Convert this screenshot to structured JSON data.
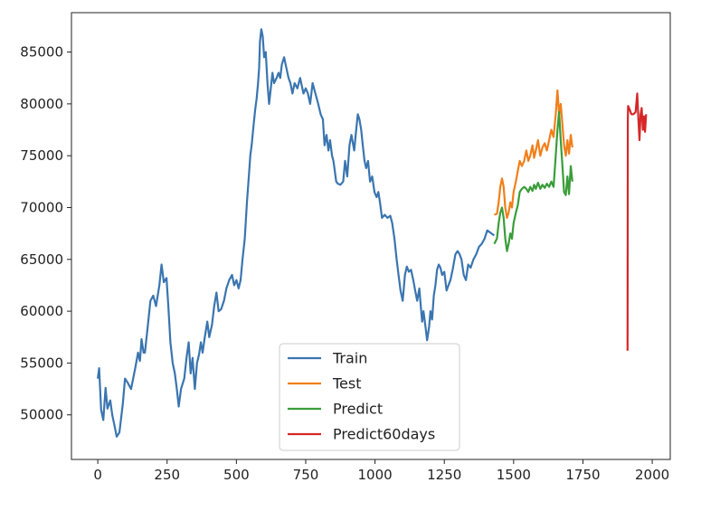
{
  "chart_data": {
    "type": "line",
    "title": "",
    "xlabel": "",
    "ylabel": "",
    "xlim": [
      -95,
      2065
    ],
    "ylim": [
      45700,
      88800
    ],
    "x_ticks": [
      0,
      250,
      500,
      750,
      1000,
      1250,
      1500,
      1750,
      2000
    ],
    "x_tick_labels": [
      "0",
      "250",
      "500",
      "750",
      "1000",
      "1250",
      "1500",
      "1750",
      "2000"
    ],
    "y_ticks": [
      50000,
      55000,
      60000,
      65000,
      70000,
      75000,
      80000,
      85000
    ],
    "y_tick_labels": [
      "50000",
      "55000",
      "60000",
      "65000",
      "70000",
      "75000",
      "80000",
      "85000"
    ],
    "grid": false,
    "legend": {
      "position": "lower-center"
    },
    "series": [
      {
        "name": "Train",
        "color": "#3a75b0",
        "points": [
          [
            0,
            53500
          ],
          [
            5,
            54500
          ],
          [
            12,
            50500
          ],
          [
            20,
            49500
          ],
          [
            28,
            52600
          ],
          [
            35,
            50600
          ],
          [
            45,
            51400
          ],
          [
            52,
            50000
          ],
          [
            60,
            49000
          ],
          [
            68,
            47900
          ],
          [
            78,
            48300
          ],
          [
            90,
            51000
          ],
          [
            98,
            53500
          ],
          [
            108,
            53100
          ],
          [
            120,
            52500
          ],
          [
            135,
            54500
          ],
          [
            145,
            56000
          ],
          [
            152,
            55200
          ],
          [
            158,
            57300
          ],
          [
            165,
            56000
          ],
          [
            170,
            56000
          ],
          [
            180,
            58500
          ],
          [
            190,
            61000
          ],
          [
            200,
            61500
          ],
          [
            210,
            60500
          ],
          [
            222,
            62500
          ],
          [
            230,
            64500
          ],
          [
            238,
            62800
          ],
          [
            248,
            63200
          ],
          [
            255,
            60200
          ],
          [
            262,
            57000
          ],
          [
            270,
            55000
          ],
          [
            278,
            54000
          ],
          [
            285,
            52500
          ],
          [
            292,
            50800
          ],
          [
            300,
            52500
          ],
          [
            312,
            53500
          ],
          [
            320,
            55500
          ],
          [
            328,
            57000
          ],
          [
            335,
            54000
          ],
          [
            342,
            55500
          ],
          [
            350,
            52500
          ],
          [
            358,
            55000
          ],
          [
            365,
            55800
          ],
          [
            372,
            57000
          ],
          [
            378,
            56000
          ],
          [
            386,
            57500
          ],
          [
            395,
            59000
          ],
          [
            402,
            57500
          ],
          [
            412,
            58700
          ],
          [
            420,
            60500
          ],
          [
            428,
            61800
          ],
          [
            436,
            60000
          ],
          [
            445,
            60200
          ],
          [
            455,
            61000
          ],
          [
            464,
            62200
          ],
          [
            474,
            63000
          ],
          [
            484,
            63500
          ],
          [
            492,
            62500
          ],
          [
            500,
            63000
          ],
          [
            508,
            62200
          ],
          [
            515,
            63000
          ],
          [
            522,
            65000
          ],
          [
            530,
            67000
          ],
          [
            538,
            70500
          ],
          [
            545,
            73000
          ],
          [
            550,
            75000
          ],
          [
            555,
            76000
          ],
          [
            562,
            78000
          ],
          [
            568,
            79500
          ],
          [
            573,
            80500
          ],
          [
            578,
            82000
          ],
          [
            582,
            83500
          ],
          [
            585,
            86000
          ],
          [
            590,
            87200
          ],
          [
            595,
            86500
          ],
          [
            600,
            84500
          ],
          [
            606,
            85000
          ],
          [
            612,
            82000
          ],
          [
            618,
            80000
          ],
          [
            624,
            81500
          ],
          [
            630,
            83000
          ],
          [
            636,
            82000
          ],
          [
            645,
            82500
          ],
          [
            652,
            83000
          ],
          [
            658,
            82500
          ],
          [
            664,
            83800
          ],
          [
            672,
            84500
          ],
          [
            680,
            83500
          ],
          [
            688,
            82500
          ],
          [
            695,
            82000
          ],
          [
            702,
            81000
          ],
          [
            710,
            82000
          ],
          [
            720,
            81500
          ],
          [
            730,
            82500
          ],
          [
            742,
            81000
          ],
          [
            750,
            81500
          ],
          [
            758,
            81000
          ],
          [
            766,
            80000
          ],
          [
            775,
            82000
          ],
          [
            785,
            81000
          ],
          [
            795,
            80000
          ],
          [
            804,
            79000
          ],
          [
            812,
            78500
          ],
          [
            818,
            76000
          ],
          [
            825,
            77000
          ],
          [
            832,
            75500
          ],
          [
            838,
            76500
          ],
          [
            845,
            75000
          ],
          [
            850,
            74500
          ],
          [
            855,
            73500
          ],
          [
            860,
            72500
          ],
          [
            866,
            72300
          ],
          [
            875,
            72200
          ],
          [
            885,
            72500
          ],
          [
            892,
            74500
          ],
          [
            900,
            73000
          ],
          [
            908,
            76000
          ],
          [
            915,
            77000
          ],
          [
            925,
            75500
          ],
          [
            932,
            77500
          ],
          [
            938,
            79000
          ],
          [
            944,
            78500
          ],
          [
            950,
            77500
          ],
          [
            956,
            76000
          ],
          [
            962,
            74500
          ],
          [
            968,
            73800
          ],
          [
            975,
            74500
          ],
          [
            982,
            72500
          ],
          [
            990,
            73000
          ],
          [
            998,
            71500
          ],
          [
            1006,
            71000
          ],
          [
            1012,
            71500
          ],
          [
            1018,
            70500
          ],
          [
            1025,
            69000
          ],
          [
            1035,
            69300
          ],
          [
            1045,
            69000
          ],
          [
            1055,
            69200
          ],
          [
            1062,
            68500
          ],
          [
            1070,
            67000
          ],
          [
            1078,
            65000
          ],
          [
            1085,
            63500
          ],
          [
            1092,
            62000
          ],
          [
            1100,
            61000
          ],
          [
            1108,
            63500
          ],
          [
            1115,
            64300
          ],
          [
            1122,
            63800
          ],
          [
            1130,
            64000
          ],
          [
            1138,
            63000
          ],
          [
            1145,
            62000
          ],
          [
            1152,
            61000
          ],
          [
            1160,
            62200
          ],
          [
            1165,
            60500
          ],
          [
            1170,
            59000
          ],
          [
            1175,
            60000
          ],
          [
            1182,
            58500
          ],
          [
            1188,
            57200
          ],
          [
            1195,
            58500
          ],
          [
            1200,
            60000
          ],
          [
            1206,
            59200
          ],
          [
            1212,
            61500
          ],
          [
            1218,
            62500
          ],
          [
            1224,
            64000
          ],
          [
            1230,
            64500
          ],
          [
            1236,
            64200
          ],
          [
            1242,
            63500
          ],
          [
            1250,
            63800
          ],
          [
            1258,
            62000
          ],
          [
            1265,
            62500
          ],
          [
            1272,
            63000
          ],
          [
            1280,
            64000
          ],
          [
            1290,
            65500
          ],
          [
            1298,
            65800
          ],
          [
            1305,
            65500
          ],
          [
            1312,
            65000
          ],
          [
            1320,
            63500
          ],
          [
            1328,
            63000
          ],
          [
            1336,
            64500
          ],
          [
            1345,
            64200
          ],
          [
            1355,
            65000
          ],
          [
            1365,
            65500
          ],
          [
            1375,
            66200
          ],
          [
            1385,
            66500
          ],
          [
            1395,
            67000
          ],
          [
            1405,
            67800
          ],
          [
            1420,
            67500
          ],
          [
            1430,
            67300
          ]
        ]
      },
      {
        "name": "Test",
        "color": "#f17f1a",
        "points": [
          [
            1430,
            69300
          ],
          [
            1440,
            69400
          ],
          [
            1446,
            70500
          ],
          [
            1452,
            72000
          ],
          [
            1458,
            72800
          ],
          [
            1464,
            72000
          ],
          [
            1470,
            70000
          ],
          [
            1476,
            69000
          ],
          [
            1482,
            69500
          ],
          [
            1488,
            70500
          ],
          [
            1494,
            70000
          ],
          [
            1500,
            71500
          ],
          [
            1508,
            72500
          ],
          [
            1515,
            73500
          ],
          [
            1522,
            74500
          ],
          [
            1530,
            74000
          ],
          [
            1538,
            74500
          ],
          [
            1546,
            75500
          ],
          [
            1553,
            74500
          ],
          [
            1560,
            75000
          ],
          [
            1568,
            76000
          ],
          [
            1574,
            74800
          ],
          [
            1580,
            75500
          ],
          [
            1588,
            76500
          ],
          [
            1596,
            75000
          ],
          [
            1604,
            75800
          ],
          [
            1612,
            76200
          ],
          [
            1620,
            75500
          ],
          [
            1628,
            76500
          ],
          [
            1636,
            77500
          ],
          [
            1644,
            76800
          ],
          [
            1652,
            79000
          ],
          [
            1658,
            81300
          ],
          [
            1664,
            79000
          ],
          [
            1670,
            80000
          ],
          [
            1676,
            78000
          ],
          [
            1682,
            76000
          ],
          [
            1688,
            75000
          ],
          [
            1694,
            76500
          ],
          [
            1700,
            75200
          ],
          [
            1706,
            77000
          ],
          [
            1712,
            75800
          ]
        ]
      },
      {
        "name": "Predict",
        "color": "#3a9d3a",
        "points": [
          [
            1430,
            66500
          ],
          [
            1440,
            67000
          ],
          [
            1446,
            68500
          ],
          [
            1452,
            69500
          ],
          [
            1458,
            70000
          ],
          [
            1464,
            69000
          ],
          [
            1470,
            67000
          ],
          [
            1476,
            65800
          ],
          [
            1482,
            66500
          ],
          [
            1488,
            67500
          ],
          [
            1494,
            67000
          ],
          [
            1500,
            68500
          ],
          [
            1508,
            69500
          ],
          [
            1515,
            70200
          ],
          [
            1522,
            71500
          ],
          [
            1530,
            71800
          ],
          [
            1538,
            72000
          ],
          [
            1546,
            71800
          ],
          [
            1553,
            71500
          ],
          [
            1560,
            72000
          ],
          [
            1568,
            71600
          ],
          [
            1574,
            72200
          ],
          [
            1580,
            71800
          ],
          [
            1588,
            72400
          ],
          [
            1596,
            71800
          ],
          [
            1604,
            72200
          ],
          [
            1612,
            71900
          ],
          [
            1620,
            72300
          ],
          [
            1628,
            72000
          ],
          [
            1636,
            72500
          ],
          [
            1644,
            72000
          ],
          [
            1652,
            75000
          ],
          [
            1658,
            77500
          ],
          [
            1664,
            79200
          ],
          [
            1670,
            76500
          ],
          [
            1676,
            74000
          ],
          [
            1682,
            71500
          ],
          [
            1688,
            71200
          ],
          [
            1694,
            73000
          ],
          [
            1700,
            71300
          ],
          [
            1706,
            74000
          ],
          [
            1712,
            72500
          ]
        ]
      },
      {
        "name": "Predict60days",
        "color": "#d62728",
        "points": [
          [
            1911,
            56200
          ],
          [
            1912,
            78500
          ],
          [
            1913,
            79800
          ],
          [
            1918,
            79500
          ],
          [
            1925,
            79000
          ],
          [
            1932,
            79000
          ],
          [
            1940,
            79200
          ],
          [
            1946,
            81000
          ],
          [
            1950,
            78500
          ],
          [
            1954,
            76500
          ],
          [
            1958,
            79000
          ],
          [
            1962,
            79600
          ],
          [
            1966,
            77500
          ],
          [
            1970,
            78800
          ],
          [
            1974,
            77300
          ],
          [
            1978,
            79000
          ]
        ]
      }
    ]
  }
}
